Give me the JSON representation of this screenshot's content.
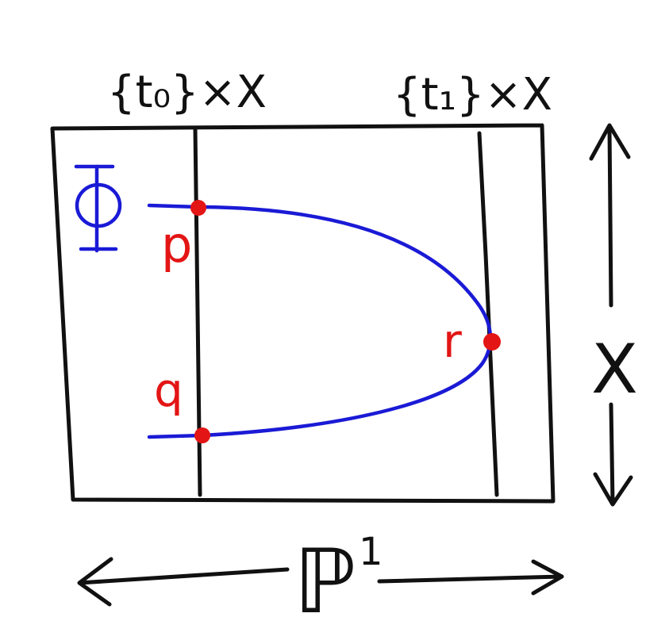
{
  "labels": {
    "fiber_t0": "{t₀}×X",
    "fiber_t1": "{t₁}×X",
    "space_X": "X",
    "base_P1": "ℙ",
    "base_P1_sup": "1",
    "phi": "Φ",
    "point_p": "p",
    "point_q": "q",
    "point_r": "r"
  },
  "colors": {
    "ink": "#111111",
    "curve": "#1a1ad6",
    "points": "#e31515"
  }
}
